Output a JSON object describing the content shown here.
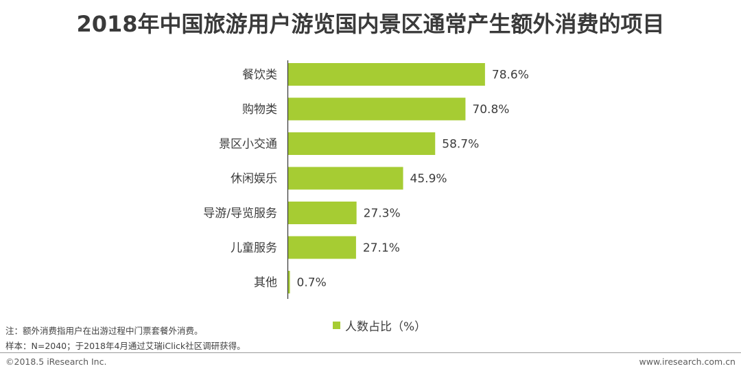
{
  "title": "2018年中国旅游用户游览国内景区通常产生额外消费的项目",
  "chart_data": {
    "type": "bar",
    "orientation": "horizontal",
    "categories": [
      "餐饮类",
      "购物类",
      "景区小交通",
      "休闲娱乐",
      "导游/导览服务",
      "儿童服务",
      "其他"
    ],
    "series": [
      {
        "name": "人数占比（%）",
        "values": [
          78.6,
          70.8,
          58.7,
          45.9,
          27.3,
          27.1,
          0.7
        ],
        "color": "#a6cc33"
      }
    ],
    "value_labels": [
      "78.6%",
      "70.8%",
      "58.7%",
      "45.9%",
      "27.3%",
      "27.1%",
      "0.7%"
    ],
    "legend_position": "bottom-center",
    "grid": false
  },
  "legend": {
    "label": "人数占比（%）"
  },
  "notes": {
    "note1": "注：额外消费指用户在出游过程中门票套餐外消费。",
    "note2": "样本：N=2040；于2018年4月通过艾瑞iClick社区调研获得。"
  },
  "footer": {
    "copyright": "©2018.5 iResearch Inc.",
    "website": "www.iresearch.com.cn"
  }
}
